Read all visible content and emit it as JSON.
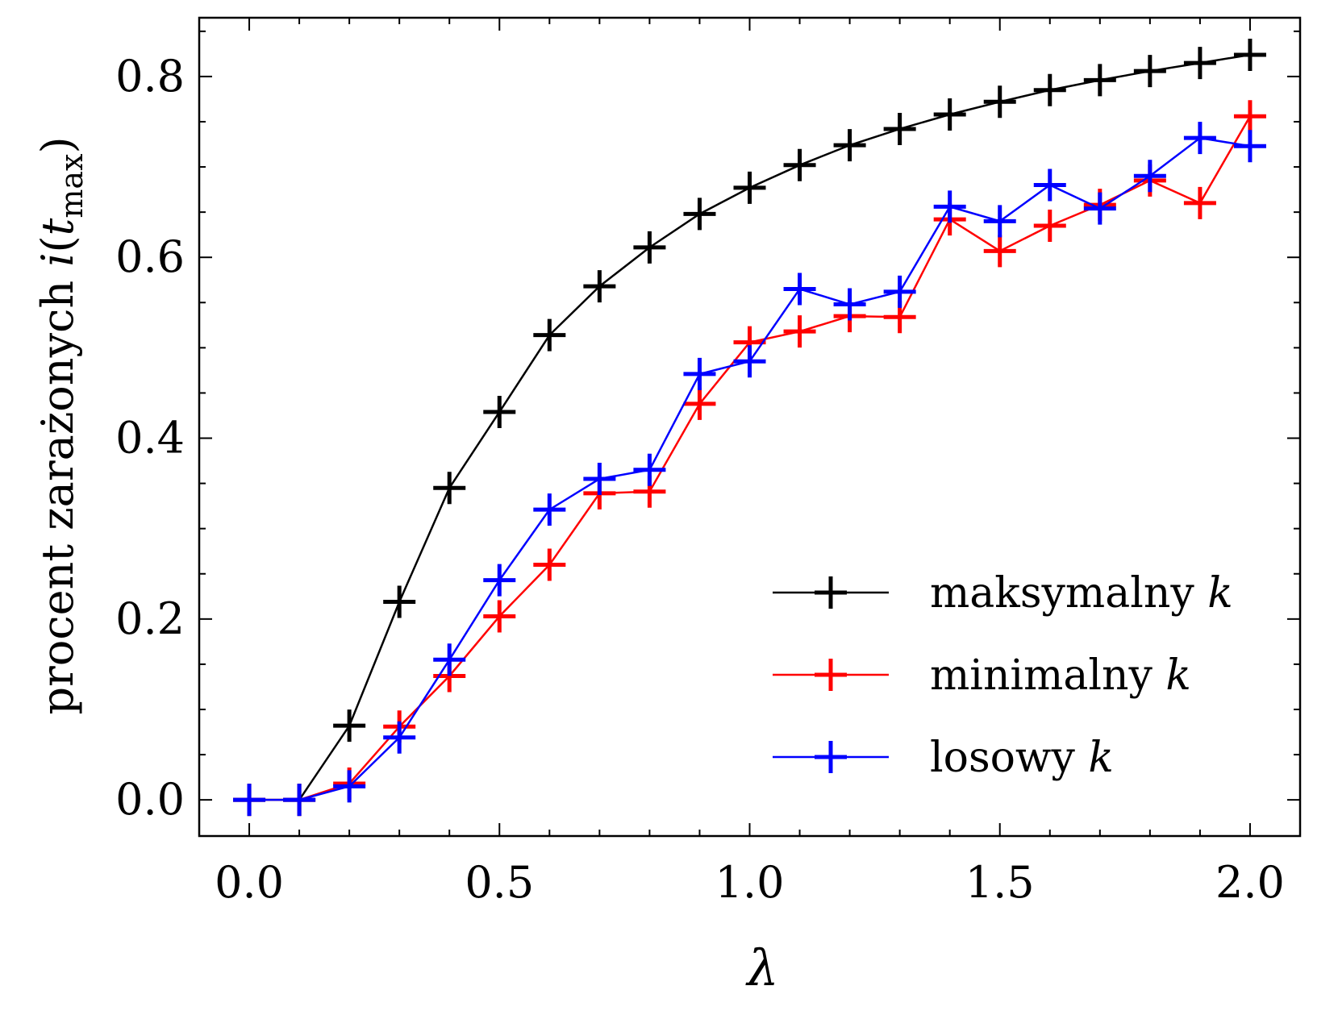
{
  "chart_data": {
    "type": "line",
    "xlabel": "λ",
    "ylabel": {
      "prefix": "procent zarażonych ",
      "var": "i",
      "open": "(",
      "arg": "t",
      "sub": "max",
      "close": ")"
    },
    "xlim": [
      -0.1,
      2.1
    ],
    "ylim": [
      -0.04,
      0.865
    ],
    "xticks": [
      0.0,
      0.5,
      1.0,
      1.5,
      2.0
    ],
    "xtick_labels": [
      "0.0",
      "0.5",
      "1.0",
      "1.5",
      "2.0"
    ],
    "yticks": [
      0.0,
      0.2,
      0.4,
      0.6,
      0.8
    ],
    "ytick_labels": [
      "0.0",
      "0.2",
      "0.4",
      "0.6",
      "0.8"
    ],
    "x_minor_step": 0.1,
    "y_minor_step": 0.05,
    "grid": false,
    "legend_position": "lower-right",
    "x": [
      0.0,
      0.1,
      0.2,
      0.3,
      0.4,
      0.5,
      0.6,
      0.7,
      0.8,
      0.9,
      1.0,
      1.1,
      1.2,
      1.3,
      1.4,
      1.5,
      1.6,
      1.7,
      1.8,
      1.9,
      2.0
    ],
    "series": [
      {
        "name": "maksymalny",
        "name_var": "k",
        "color": "#000000",
        "values": [
          0.0,
          0.0,
          0.082,
          0.219,
          0.345,
          0.429,
          0.514,
          0.568,
          0.611,
          0.648,
          0.677,
          0.702,
          0.724,
          0.742,
          0.758,
          0.772,
          0.785,
          0.796,
          0.806,
          0.815,
          0.824
        ]
      },
      {
        "name": "minimalny",
        "name_var": "k",
        "color": "#ff0000",
        "values": [
          0.0,
          0.0,
          0.018,
          0.081,
          0.137,
          0.203,
          0.26,
          0.339,
          0.341,
          0.438,
          0.506,
          0.518,
          0.535,
          0.534,
          0.642,
          0.607,
          0.635,
          0.658,
          0.685,
          0.66,
          0.756
        ]
      },
      {
        "name": "losowy",
        "name_var": "k",
        "color": "#0000ff",
        "values": [
          0.0,
          0.0,
          0.015,
          0.069,
          0.155,
          0.243,
          0.321,
          0.355,
          0.365,
          0.471,
          0.485,
          0.565,
          0.548,
          0.562,
          0.656,
          0.64,
          0.68,
          0.654,
          0.69,
          0.732,
          0.723
        ]
      }
    ]
  }
}
